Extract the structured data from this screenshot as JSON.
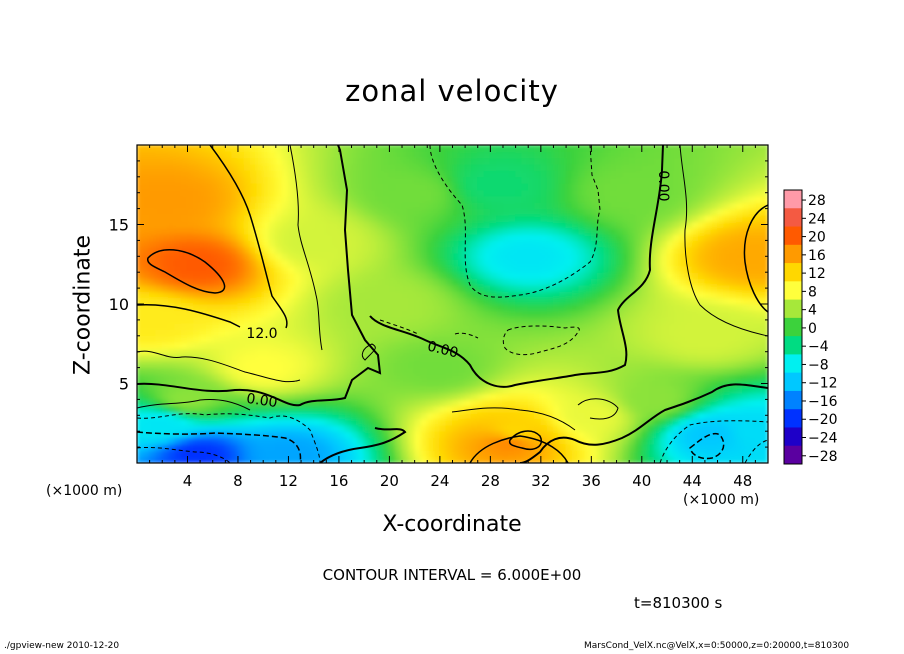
{
  "chart_data": {
    "type": "heatmap",
    "title": "zonal velocity",
    "xlabel": "X-coordinate",
    "ylabel": "Z-coordinate",
    "x_unit": "(×1000 m)",
    "y_unit": "(×1000 m)",
    "xlim": [
      0,
      50
    ],
    "ylim": [
      0,
      20
    ],
    "x_ticks": [
      "4",
      "8",
      "12",
      "16",
      "20",
      "24",
      "28",
      "32",
      "36",
      "40",
      "44",
      "48"
    ],
    "y_ticks": [
      "5",
      "10",
      "15"
    ],
    "colorbar_levels": [
      "28",
      "24",
      "20",
      "16",
      "12",
      "8",
      "4",
      "0",
      "−4",
      "−8",
      "−12",
      "−16",
      "−20",
      "−24",
      "−28"
    ],
    "colorbar_colors": [
      "#ff9aa8",
      "#f45a42",
      "#ff5a00",
      "#ff9a00",
      "#ffd700",
      "#ffff3c",
      "#a6e83a",
      "#3cd23c",
      "#00dc82",
      "#00f0f0",
      "#00c8ff",
      "#0082ff",
      "#0032ff",
      "#1e00c8",
      "#5a00a0"
    ],
    "contour_labels": [
      "12.0",
      "0.00",
      "0.00",
      "0.00"
    ],
    "contour_interval_text": "CONTOUR INTERVAL = 6.000E+00",
    "time_text": "t=810300 s",
    "velocity_features": [
      {
        "x": 4.8,
        "z": 12.5,
        "value": 20
      },
      {
        "x": 2.5,
        "z": 16.5,
        "value": 16
      },
      {
        "x": 1.0,
        "z": 9.0,
        "value": 10
      },
      {
        "x": 14.0,
        "z": 14.0,
        "value": 6
      },
      {
        "x": 20.0,
        "z": 10.0,
        "value": 4
      },
      {
        "x": 31.0,
        "z": 13.0,
        "value": -9
      },
      {
        "x": 28.5,
        "z": 17.5,
        "value": -3
      },
      {
        "x": 24.0,
        "z": 6.0,
        "value": 2
      },
      {
        "x": 30.0,
        "z": 2.0,
        "value": 12
      },
      {
        "x": 29.5,
        "z": 1.3,
        "value": 17
      },
      {
        "x": 5.0,
        "z": 0.6,
        "value": -20
      },
      {
        "x": 12.0,
        "z": 0.6,
        "value": -14
      },
      {
        "x": 2.0,
        "z": 2.5,
        "value": -9
      },
      {
        "x": 45.5,
        "z": 1.8,
        "value": -12
      },
      {
        "x": 49.0,
        "z": 2.0,
        "value": -10
      },
      {
        "x": 48.8,
        "z": 13.0,
        "value": 15
      },
      {
        "x": 45.0,
        "z": 8.0,
        "value": 6
      },
      {
        "x": 41.0,
        "z": 4.0,
        "value": 3
      },
      {
        "x": 36.0,
        "z": 3.0,
        "value": 7
      },
      {
        "x": 22.0,
        "z": 17.0,
        "value": 2
      },
      {
        "x": 39.0,
        "z": 17.0,
        "value": 2
      },
      {
        "x": 10.0,
        "z": 6.0,
        "value": 8
      },
      {
        "x": 4.0,
        "z": 4.0,
        "value": 3
      }
    ]
  },
  "footer": {
    "left": "./gpview-new  2010-12-20",
    "right": "MarsCond_VelX.nc@VelX,x=0:50000,z=0:20000,t=810300"
  }
}
